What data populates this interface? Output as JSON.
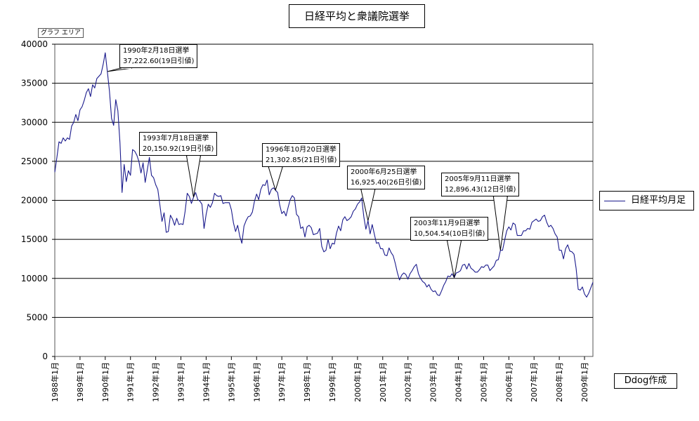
{
  "chart_data": {
    "type": "line",
    "title": "日経平均と衆議院選挙",
    "chart_area_tag": "グラフ エリア",
    "legend_label": "日経平均月足",
    "credit": "Ddog作成",
    "ylim": [
      0,
      40000
    ],
    "y_ticks": [
      0,
      5000,
      10000,
      15000,
      20000,
      25000,
      30000,
      35000,
      40000
    ],
    "x_start_index": 0,
    "x_end_index": 256,
    "x_ticks": [
      {
        "label": "1988年1月",
        "index": 0
      },
      {
        "label": "1989年1月",
        "index": 12
      },
      {
        "label": "1990年1月",
        "index": 24
      },
      {
        "label": "1991年1月",
        "index": 36
      },
      {
        "label": "1992年1月",
        "index": 48
      },
      {
        "label": "1993年1月",
        "index": 60
      },
      {
        "label": "1994年1月",
        "index": 72
      },
      {
        "label": "1995年1月",
        "index": 84
      },
      {
        "label": "1996年1月",
        "index": 96
      },
      {
        "label": "1997年1月",
        "index": 108
      },
      {
        "label": "1998年1月",
        "index": 120
      },
      {
        "label": "1999年1月",
        "index": 132
      },
      {
        "label": "2000年1月",
        "index": 144
      },
      {
        "label": "2001年1月",
        "index": 156
      },
      {
        "label": "2002年1月",
        "index": 168
      },
      {
        "label": "2003年1月",
        "index": 180
      },
      {
        "label": "2004年1月",
        "index": 192
      },
      {
        "label": "2005年1月",
        "index": 204
      },
      {
        "label": "2006年1月",
        "index": 216
      },
      {
        "label": "2007年1月",
        "index": 228
      },
      {
        "label": "2008年1月",
        "index": 240
      },
      {
        "label": "2009年1月",
        "index": 252
      }
    ],
    "series": [
      {
        "name": "日経平均月足",
        "color": "#1a1a8c",
        "points": [
          [
            0,
            23600
          ],
          [
            1,
            25500
          ],
          [
            2,
            27500
          ],
          [
            3,
            27300
          ],
          [
            4,
            28000
          ],
          [
            5,
            27600
          ],
          [
            6,
            28000
          ],
          [
            7,
            27800
          ],
          [
            8,
            29500
          ],
          [
            9,
            30000
          ],
          [
            10,
            31000
          ],
          [
            11,
            30200
          ],
          [
            12,
            31600
          ],
          [
            13,
            32000
          ],
          [
            14,
            32800
          ],
          [
            15,
            33800
          ],
          [
            16,
            34300
          ],
          [
            17,
            33300
          ],
          [
            18,
            34800
          ],
          [
            19,
            34400
          ],
          [
            20,
            35600
          ],
          [
            21,
            35900
          ],
          [
            22,
            36200
          ],
          [
            23,
            37400
          ],
          [
            24,
            38900
          ],
          [
            25,
            36500
          ],
          [
            26,
            34000
          ],
          [
            27,
            30500
          ],
          [
            28,
            29600
          ],
          [
            29,
            32900
          ],
          [
            30,
            31500
          ],
          [
            31,
            27400
          ],
          [
            32,
            21000
          ],
          [
            33,
            24600
          ],
          [
            34,
            22400
          ],
          [
            35,
            23800
          ],
          [
            36,
            23200
          ],
          [
            37,
            26500
          ],
          [
            38,
            26300
          ],
          [
            39,
            25800
          ],
          [
            40,
            25000
          ],
          [
            41,
            23500
          ],
          [
            42,
            24800
          ],
          [
            43,
            22300
          ],
          [
            44,
            23900
          ],
          [
            45,
            25500
          ],
          [
            46,
            23200
          ],
          [
            47,
            22900
          ],
          [
            48,
            22000
          ],
          [
            49,
            21400
          ],
          [
            50,
            19400
          ],
          [
            51,
            17300
          ],
          [
            52,
            18400
          ],
          [
            53,
            15900
          ],
          [
            54,
            16000
          ],
          [
            55,
            18100
          ],
          [
            56,
            17600
          ],
          [
            57,
            16800
          ],
          [
            58,
            17700
          ],
          [
            59,
            16900
          ],
          [
            60,
            17000
          ],
          [
            61,
            16900
          ],
          [
            62,
            18600
          ],
          [
            63,
            20900
          ],
          [
            64,
            20500
          ],
          [
            65,
            19600
          ],
          [
            66,
            20400
          ],
          [
            67,
            21000
          ],
          [
            68,
            20100
          ],
          [
            69,
            19900
          ],
          [
            70,
            19500
          ],
          [
            71,
            16400
          ],
          [
            72,
            18200
          ],
          [
            73,
            19500
          ],
          [
            74,
            19100
          ],
          [
            75,
            19700
          ],
          [
            76,
            20900
          ],
          [
            77,
            20600
          ],
          [
            78,
            20500
          ],
          [
            79,
            20600
          ],
          [
            80,
            19600
          ],
          [
            81,
            19700
          ],
          [
            82,
            19700
          ],
          [
            83,
            19700
          ],
          [
            84,
            18800
          ],
          [
            85,
            17100
          ],
          [
            86,
            16000
          ],
          [
            87,
            16800
          ],
          [
            88,
            15400
          ],
          [
            89,
            14500
          ],
          [
            90,
            16700
          ],
          [
            91,
            17400
          ],
          [
            92,
            17900
          ],
          [
            93,
            18000
          ],
          [
            94,
            18500
          ],
          [
            95,
            19900
          ],
          [
            96,
            20800
          ],
          [
            97,
            20100
          ],
          [
            98,
            21400
          ],
          [
            99,
            22000
          ],
          [
            100,
            21900
          ],
          [
            101,
            22600
          ],
          [
            102,
            20700
          ],
          [
            103,
            21400
          ],
          [
            104,
            21600
          ],
          [
            105,
            21300
          ],
          [
            106,
            21000
          ],
          [
            107,
            19400
          ],
          [
            108,
            18300
          ],
          [
            109,
            18600
          ],
          [
            110,
            18000
          ],
          [
            111,
            19100
          ],
          [
            112,
            20100
          ],
          [
            113,
            20600
          ],
          [
            114,
            20300
          ],
          [
            115,
            18200
          ],
          [
            116,
            17900
          ],
          [
            117,
            16400
          ],
          [
            118,
            16600
          ],
          [
            119,
            15300
          ],
          [
            120,
            16600
          ],
          [
            121,
            16800
          ],
          [
            122,
            16500
          ],
          [
            123,
            15600
          ],
          [
            124,
            15700
          ],
          [
            125,
            15800
          ],
          [
            126,
            16400
          ],
          [
            127,
            14100
          ],
          [
            128,
            13400
          ],
          [
            129,
            13600
          ],
          [
            130,
            15000
          ],
          [
            131,
            13800
          ],
          [
            132,
            14500
          ],
          [
            133,
            14400
          ],
          [
            134,
            15800
          ],
          [
            135,
            16700
          ],
          [
            136,
            16100
          ],
          [
            137,
            17500
          ],
          [
            138,
            17900
          ],
          [
            139,
            17400
          ],
          [
            140,
            17600
          ],
          [
            141,
            17900
          ],
          [
            142,
            18600
          ],
          [
            143,
            18900
          ],
          [
            144,
            19500
          ],
          [
            145,
            19800
          ],
          [
            146,
            20300
          ],
          [
            147,
            17900
          ],
          [
            148,
            16300
          ],
          [
            149,
            17400
          ],
          [
            150,
            15700
          ],
          [
            151,
            16900
          ],
          [
            152,
            15700
          ],
          [
            153,
            14500
          ],
          [
            154,
            14600
          ],
          [
            155,
            13800
          ],
          [
            156,
            13800
          ],
          [
            157,
            13000
          ],
          [
            158,
            12900
          ],
          [
            159,
            13900
          ],
          [
            160,
            13300
          ],
          [
            161,
            12900
          ],
          [
            162,
            11900
          ],
          [
            163,
            10700
          ],
          [
            164,
            9800
          ],
          [
            165,
            10400
          ],
          [
            166,
            10700
          ],
          [
            167,
            10500
          ],
          [
            168,
            9900
          ],
          [
            169,
            10600
          ],
          [
            170,
            11000
          ],
          [
            171,
            11500
          ],
          [
            172,
            11800
          ],
          [
            173,
            10600
          ],
          [
            174,
            10000
          ],
          [
            175,
            9600
          ],
          [
            176,
            9400
          ],
          [
            177,
            8900
          ],
          [
            178,
            9200
          ],
          [
            179,
            8600
          ],
          [
            180,
            8300
          ],
          [
            181,
            8400
          ],
          [
            182,
            7900
          ],
          [
            183,
            7800
          ],
          [
            184,
            8400
          ],
          [
            185,
            9100
          ],
          [
            186,
            9600
          ],
          [
            187,
            10300
          ],
          [
            188,
            10200
          ],
          [
            189,
            10600
          ],
          [
            190,
            10100
          ],
          [
            191,
            10700
          ],
          [
            192,
            10800
          ],
          [
            193,
            11000
          ],
          [
            194,
            11700
          ],
          [
            195,
            11800
          ],
          [
            196,
            11200
          ],
          [
            197,
            11900
          ],
          [
            198,
            11300
          ],
          [
            199,
            11100
          ],
          [
            200,
            10800
          ],
          [
            201,
            10800
          ],
          [
            202,
            11100
          ],
          [
            203,
            11500
          ],
          [
            204,
            11400
          ],
          [
            205,
            11700
          ],
          [
            206,
            11700
          ],
          [
            207,
            11000
          ],
          [
            208,
            11300
          ],
          [
            209,
            11600
          ],
          [
            210,
            12300
          ],
          [
            211,
            12400
          ],
          [
            212,
            13600
          ],
          [
            213,
            13600
          ],
          [
            214,
            14900
          ],
          [
            215,
            16100
          ],
          [
            216,
            16600
          ],
          [
            217,
            16200
          ],
          [
            218,
            17100
          ],
          [
            219,
            16900
          ],
          [
            220,
            15500
          ],
          [
            221,
            15500
          ],
          [
            222,
            15500
          ],
          [
            223,
            16100
          ],
          [
            224,
            16100
          ],
          [
            225,
            16400
          ],
          [
            226,
            16300
          ],
          [
            227,
            17200
          ],
          [
            228,
            17400
          ],
          [
            229,
            17600
          ],
          [
            230,
            17300
          ],
          [
            231,
            17400
          ],
          [
            232,
            17900
          ],
          [
            233,
            18100
          ],
          [
            234,
            17200
          ],
          [
            235,
            16600
          ],
          [
            236,
            16800
          ],
          [
            237,
            16400
          ],
          [
            238,
            15700
          ],
          [
            239,
            15300
          ],
          [
            240,
            13600
          ],
          [
            241,
            13600
          ],
          [
            242,
            12500
          ],
          [
            243,
            13800
          ],
          [
            244,
            14300
          ],
          [
            245,
            13500
          ],
          [
            246,
            13400
          ],
          [
            247,
            13100
          ],
          [
            248,
            11300
          ],
          [
            249,
            8600
          ],
          [
            250,
            8500
          ],
          [
            251,
            8900
          ],
          [
            252,
            8000
          ],
          [
            253,
            7600
          ],
          [
            254,
            8100
          ],
          [
            255,
            8800
          ],
          [
            256,
            9500
          ]
        ]
      }
    ],
    "annotations": [
      {
        "lines": [
          "1990年2月18日選挙",
          "37,222.60(19日引値)"
        ],
        "target_index": 25
      },
      {
        "lines": [
          "1993年7月18日選挙",
          "20,150.92(19日引値)"
        ],
        "target_index": 66
      },
      {
        "lines": [
          "1996年10月20日選挙",
          "21,302.85(21日引値)"
        ],
        "target_index": 105
      },
      {
        "lines": [
          "2000年6月25日選挙",
          "16,925.40(26日引値)"
        ],
        "target_index": 149
      },
      {
        "lines": [
          "2003年11月9日選挙",
          "10,504.54(10日引値)"
        ],
        "target_index": 190
      },
      {
        "lines": [
          "2005年9月11日選挙",
          "12,896.43(12日引値)"
        ],
        "target_index": 212
      }
    ]
  }
}
